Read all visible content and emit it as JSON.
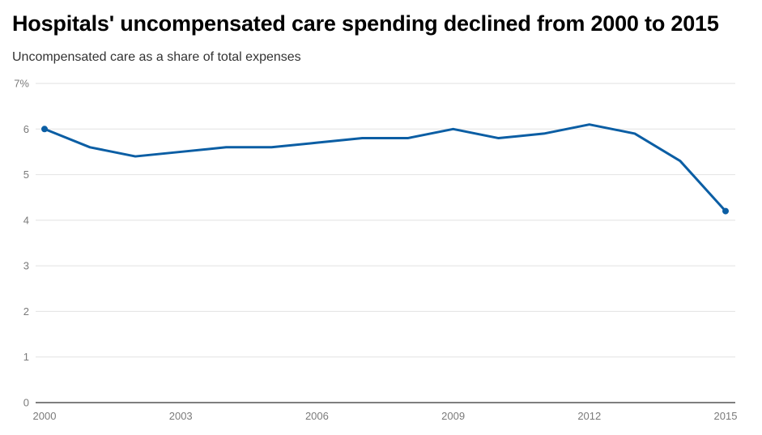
{
  "chart_data": {
    "type": "line",
    "title": "Hospitals' uncompensated care spending declined from 2000 to 2015",
    "subtitle": "Uncompensated care as a share of total expenses",
    "xlabel": "",
    "ylabel": "",
    "x": [
      2000,
      2001,
      2002,
      2003,
      2004,
      2005,
      2006,
      2007,
      2008,
      2009,
      2010,
      2011,
      2012,
      2013,
      2014,
      2015
    ],
    "series": [
      {
        "values": [
          6.0,
          5.6,
          5.4,
          5.5,
          5.6,
          5.6,
          5.7,
          5.8,
          5.8,
          6.0,
          5.8,
          5.9,
          6.1,
          5.9,
          5.3,
          4.2
        ]
      }
    ],
    "xticks": [
      2000,
      2003,
      2006,
      2009,
      2012,
      2015
    ],
    "yticks": [
      0,
      1,
      2,
      3,
      4,
      5,
      6,
      7
    ],
    "ytick_labels": [
      "0",
      "1",
      "2",
      "3",
      "4",
      "5",
      "6",
      "7%"
    ],
    "xlim": [
      2000,
      2015
    ],
    "ylim": [
      0,
      7
    ],
    "grid": true,
    "line_color": "#0b5ea4",
    "grid_color": "#e2e2e2",
    "axis_color": "#333333",
    "endpoint_markers": true
  }
}
